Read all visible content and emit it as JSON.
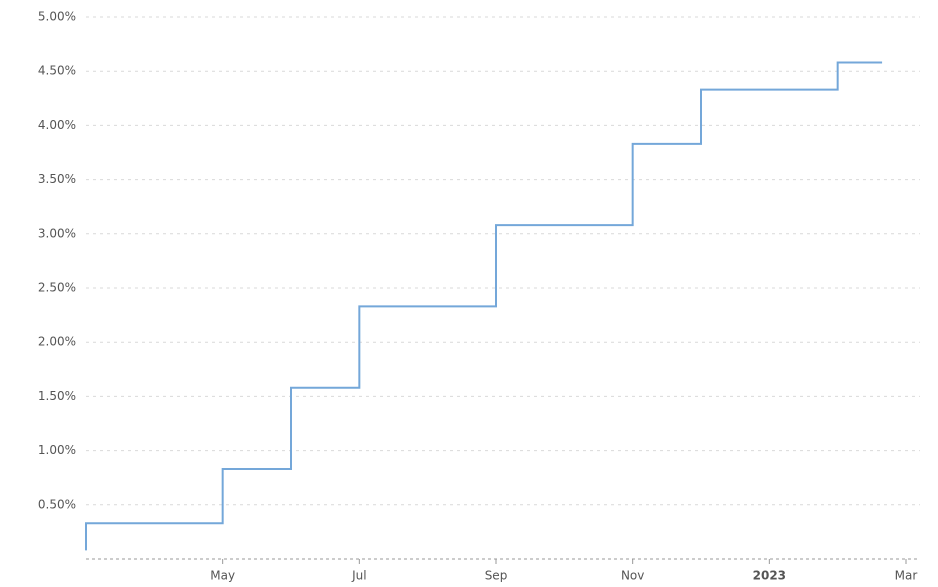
{
  "chart_data": {
    "type": "line",
    "step": "after",
    "color": "#74a7d9",
    "grid": true,
    "x": [
      "2022-03",
      "2022-03",
      "2022-05",
      "2022-06",
      "2022-07",
      "2022-09",
      "2022-11",
      "2022-12",
      "2023-02"
    ],
    "series": [
      {
        "color": "#74a7d9",
        "values": [
          0.08,
          0.33,
          0.83,
          1.58,
          2.33,
          3.08,
          3.83,
          4.33,
          4.58
        ]
      }
    ],
    "xlim": [
      "2022-03",
      "2023-03"
    ],
    "xticks": [
      {
        "value": "2022-05",
        "label": "May"
      },
      {
        "value": "2022-07",
        "label": "Jul"
      },
      {
        "value": "2022-09",
        "label": "Sep"
      },
      {
        "value": "2022-11",
        "label": "Nov"
      },
      {
        "value": "2023-01",
        "label": "2023"
      },
      {
        "value": "2023-03",
        "label": "Mar"
      }
    ],
    "ylim": [
      0,
      5
    ],
    "yticks": [
      {
        "value": 0.5,
        "label": "0.50%"
      },
      {
        "value": 1,
        "label": "1.00%"
      },
      {
        "value": 1.5,
        "label": "1.50%"
      },
      {
        "value": 2,
        "label": "2.00%"
      },
      {
        "value": 2.5,
        "label": "2.50%"
      },
      {
        "value": 3,
        "label": "3.00%"
      },
      {
        "value": 3.5,
        "label": "3.50%"
      },
      {
        "value": 4,
        "label": "4.00%"
      },
      {
        "value": 4.5,
        "label": "4.50%"
      },
      {
        "value": 5,
        "label": "5.00%"
      }
    ]
  }
}
